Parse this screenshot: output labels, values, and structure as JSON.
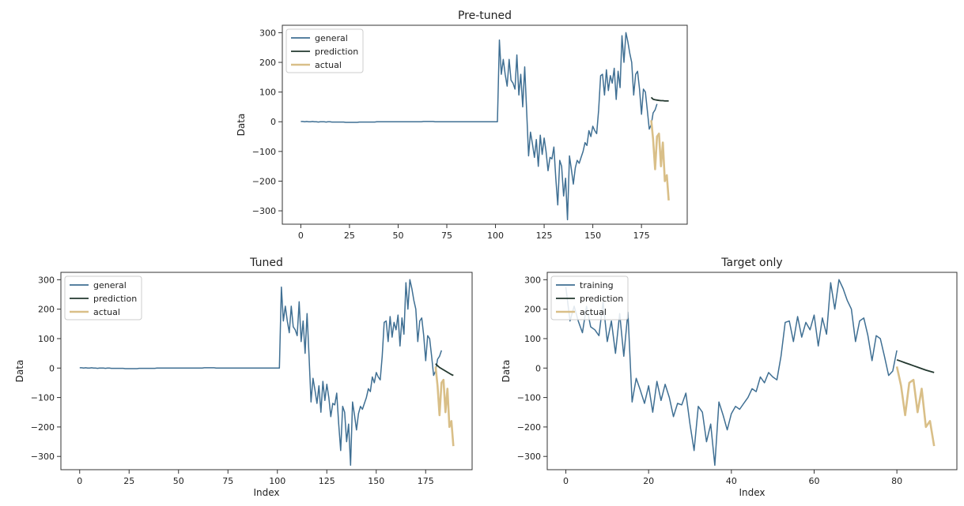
{
  "colors": {
    "general": "#3f6f93",
    "prediction": "#23382f",
    "actual": "#d9bf88",
    "axes": "#333333",
    "background": "#ffffff"
  },
  "chart_data": [
    {
      "type": "line",
      "title": "Pre-tuned",
      "xlabel": "",
      "ylabel": "Data",
      "xlim": [
        -9.5,
        198.5
      ],
      "ylim": [
        -345,
        325
      ],
      "xticks": [
        0,
        25,
        50,
        75,
        100,
        125,
        150,
        175
      ],
      "yticks": [
        300,
        200,
        100,
        0,
        -100,
        -200,
        -300
      ],
      "ytick_labels": [
        "300",
        "200",
        "100",
        "0",
        "−100",
        "−200",
        "−300"
      ],
      "legend": {
        "position": "top-left",
        "entries": [
          "general",
          "prediction",
          "actual"
        ]
      },
      "series": [
        {
          "name": "general",
          "x_start": 0,
          "values": [
            1,
            1,
            0,
            1,
            0,
            0,
            1,
            0,
            0,
            -1,
            0,
            0,
            0,
            -1,
            0,
            0,
            -1,
            -1,
            -1,
            -1,
            -1,
            -1,
            -1,
            -2,
            -2,
            -2,
            -2,
            -2,
            -2,
            -2,
            -1,
            -1,
            -1,
            -1,
            -1,
            -1,
            -1,
            -1,
            -1,
            0,
            0,
            0,
            0,
            0,
            0,
            0,
            0,
            0,
            0,
            0,
            0,
            0,
            0,
            0,
            0,
            0,
            0,
            0,
            0,
            0,
            0,
            0,
            0,
            1,
            1,
            1,
            1,
            1,
            1,
            0,
            0,
            0,
            0,
            0,
            0,
            0,
            0,
            0,
            0,
            0,
            0,
            0,
            0,
            0,
            0,
            0,
            0,
            0,
            0,
            0,
            0,
            0,
            0,
            0,
            0,
            0,
            0,
            0,
            0,
            0,
            0,
            0,
            275,
            160,
            210,
            160,
            120,
            210,
            140,
            130,
            110,
            225,
            90,
            160,
            50,
            185,
            40,
            -115,
            -35,
            -75,
            -120,
            -60,
            -150,
            -45,
            -110,
            -55,
            -100,
            -165,
            -120,
            -125,
            -85,
            -190,
            -280,
            -130,
            -150,
            -250,
            -190,
            -330,
            -115,
            -160,
            -210,
            -155,
            -130,
            -140,
            -120,
            -100,
            -70,
            -80,
            -30,
            -50,
            -15,
            -30,
            -40,
            40,
            155,
            160,
            90,
            175,
            105,
            155,
            130,
            180,
            75,
            170,
            115,
            290,
            200,
            300,
            270,
            230,
            200,
            90,
            160,
            170,
            110,
            25,
            110,
            100,
            40,
            -25,
            -10,
            30,
            40,
            60
          ]
        },
        {
          "name": "prediction",
          "x_start": 180,
          "values": [
            82,
            76,
            74,
            73,
            72,
            71,
            71,
            70,
            70,
            70
          ]
        },
        {
          "name": "actual",
          "x_start": 180,
          "values": [
            5,
            -60,
            -160,
            -50,
            -40,
            -150,
            -70,
            -200,
            -180,
            -265
          ]
        }
      ]
    },
    {
      "type": "line",
      "title": "Tuned",
      "xlabel": "Index",
      "ylabel": "Data",
      "xlim": [
        -9.5,
        198.5
      ],
      "ylim": [
        -345,
        325
      ],
      "xticks": [
        0,
        25,
        50,
        75,
        100,
        125,
        150,
        175
      ],
      "yticks": [
        300,
        200,
        100,
        0,
        -100,
        -200,
        -300
      ],
      "ytick_labels": [
        "300",
        "200",
        "100",
        "0",
        "−100",
        "−200",
        "−300"
      ],
      "legend": {
        "position": "top-left",
        "entries": [
          "general",
          "prediction",
          "actual"
        ]
      },
      "series": [
        {
          "name": "general",
          "x_start": 0,
          "values": [
            1,
            1,
            0,
            1,
            0,
            0,
            1,
            0,
            0,
            -1,
            0,
            0,
            0,
            -1,
            0,
            0,
            -1,
            -1,
            -1,
            -1,
            -1,
            -1,
            -1,
            -2,
            -2,
            -2,
            -2,
            -2,
            -2,
            -2,
            -1,
            -1,
            -1,
            -1,
            -1,
            -1,
            -1,
            -1,
            -1,
            0,
            0,
            0,
            0,
            0,
            0,
            0,
            0,
            0,
            0,
            0,
            0,
            0,
            0,
            0,
            0,
            0,
            0,
            0,
            0,
            0,
            0,
            0,
            0,
            1,
            1,
            1,
            1,
            1,
            1,
            0,
            0,
            0,
            0,
            0,
            0,
            0,
            0,
            0,
            0,
            0,
            0,
            0,
            0,
            0,
            0,
            0,
            0,
            0,
            0,
            0,
            0,
            0,
            0,
            0,
            0,
            0,
            0,
            0,
            0,
            0,
            0,
            0,
            275,
            160,
            210,
            160,
            120,
            210,
            140,
            130,
            110,
            225,
            90,
            160,
            50,
            185,
            40,
            -115,
            -35,
            -75,
            -120,
            -60,
            -150,
            -45,
            -110,
            -55,
            -100,
            -165,
            -120,
            -125,
            -85,
            -190,
            -280,
            -130,
            -150,
            -250,
            -190,
            -330,
            -115,
            -160,
            -210,
            -155,
            -130,
            -140,
            -120,
            -100,
            -70,
            -80,
            -30,
            -50,
            -15,
            -30,
            -40,
            40,
            155,
            160,
            90,
            175,
            105,
            155,
            130,
            180,
            75,
            170,
            115,
            290,
            200,
            300,
            270,
            230,
            200,
            90,
            160,
            170,
            110,
            25,
            110,
            100,
            40,
            -25,
            -10,
            30,
            40,
            60
          ]
        },
        {
          "name": "prediction",
          "x_start": 180,
          "values": [
            15,
            8,
            2,
            -2,
            -6,
            -10,
            -14,
            -18,
            -22,
            -25
          ]
        },
        {
          "name": "actual",
          "x_start": 180,
          "values": [
            5,
            -60,
            -160,
            -50,
            -40,
            -150,
            -70,
            -200,
            -180,
            -265
          ]
        }
      ]
    },
    {
      "type": "line",
      "title": "Target only",
      "xlabel": "Index",
      "ylabel": "Data",
      "xlim": [
        -4.5,
        94.5
      ],
      "ylim": [
        -345,
        325
      ],
      "xticks": [
        0,
        20,
        40,
        60,
        80
      ],
      "yticks": [
        300,
        200,
        100,
        0,
        -100,
        -200,
        -300
      ],
      "ytick_labels": [
        "300",
        "200",
        "100",
        "0",
        "−100",
        "−200",
        "−300"
      ],
      "legend": {
        "position": "top-left",
        "entries": [
          "training",
          "prediction",
          "actual"
        ]
      },
      "series": [
        {
          "name": "training",
          "x_start": 0,
          "values": [
            275,
            160,
            210,
            160,
            120,
            210,
            140,
            130,
            110,
            225,
            90,
            160,
            50,
            185,
            40,
            190,
            -115,
            -35,
            -75,
            -120,
            -60,
            -150,
            -45,
            -110,
            -55,
            -100,
            -165,
            -120,
            -125,
            -85,
            -190,
            -280,
            -130,
            -150,
            -250,
            -190,
            -330,
            -115,
            -160,
            -210,
            -155,
            -130,
            -140,
            -120,
            -100,
            -70,
            -80,
            -30,
            -50,
            -15,
            -30,
            -40,
            40,
            155,
            160,
            90,
            175,
            105,
            155,
            130,
            180,
            75,
            170,
            115,
            290,
            200,
            300,
            270,
            230,
            200,
            90,
            160,
            170,
            110,
            25,
            110,
            100,
            40,
            -25,
            -10,
            60
          ]
        },
        {
          "name": "prediction",
          "x_start": 80,
          "values": [
            28,
            23,
            18,
            13,
            8,
            3,
            -2,
            -7,
            -11,
            -15
          ]
        },
        {
          "name": "actual",
          "x_start": 80,
          "values": [
            5,
            -60,
            -160,
            -50,
            -40,
            -150,
            -70,
            -200,
            -180,
            -265
          ]
        }
      ]
    }
  ]
}
